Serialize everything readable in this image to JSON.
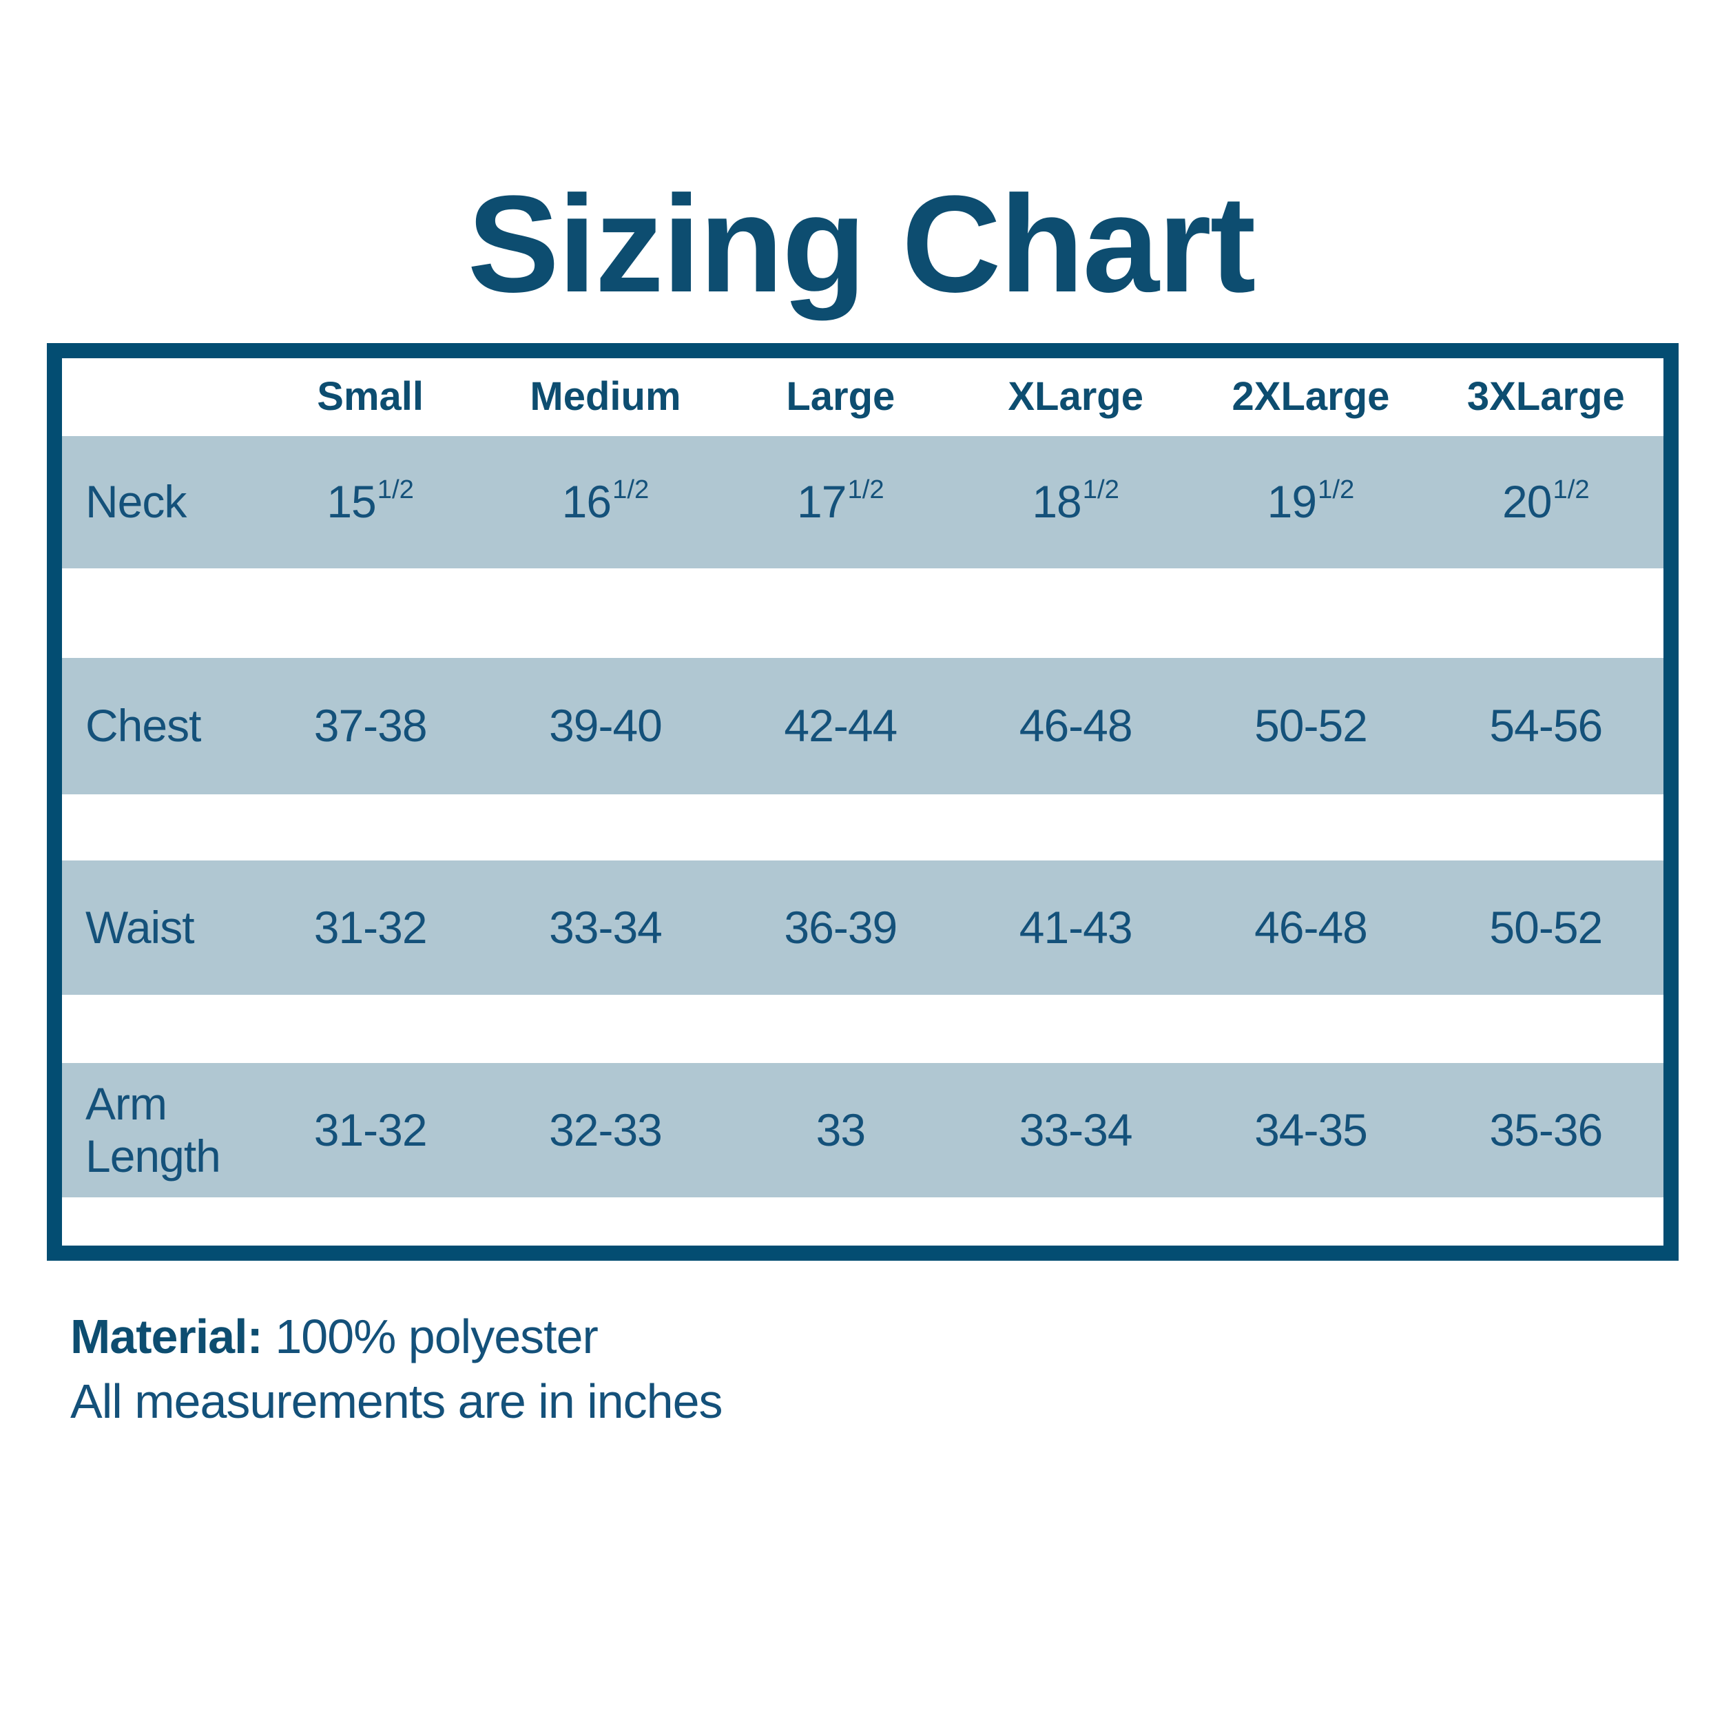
{
  "title": "Sizing Chart",
  "colors": {
    "dark_teal_border": "#034d72",
    "dark_teal_text": "#0d4d70",
    "row_blue": "#b0c7d2",
    "background": "#ffffff"
  },
  "chart_data": {
    "type": "table",
    "title": "Sizing Chart",
    "columns": [
      "Small",
      "Medium",
      "Large",
      "XLarge",
      "2XLarge",
      "3XLarge"
    ],
    "rows": [
      {
        "label": "Neck",
        "values": [
          "15 1/2",
          "16 1/2",
          "17 1/2",
          "18 1/2",
          "19 1/2",
          "20 1/2"
        ]
      },
      {
        "label": "Chest",
        "values": [
          "37-38",
          "39-40",
          "42-44",
          "46-48",
          "50-52",
          "54-56"
        ]
      },
      {
        "label": "Waist",
        "values": [
          "31-32",
          "33-34",
          "36-39",
          "41-43",
          "46-48",
          "50-52"
        ]
      },
      {
        "label": "Arm Length",
        "values": [
          "31-32",
          "32-33",
          "33",
          "33-34",
          "34-35",
          "35-36"
        ]
      }
    ],
    "notes": [
      "Material: 100% polyester",
      "All measurements are in inches"
    ],
    "layout": {
      "grid": "alternating horizontal bands",
      "band_color": "#b0c7d2",
      "units": "inches"
    }
  },
  "fractions": {
    "bases": [
      "15",
      "16",
      "17",
      "18",
      "19",
      "20"
    ],
    "sup": "1/2"
  },
  "footer": {
    "material_label": "Material:",
    "material_value": "100% polyester",
    "note": "All measurements are in inches"
  }
}
